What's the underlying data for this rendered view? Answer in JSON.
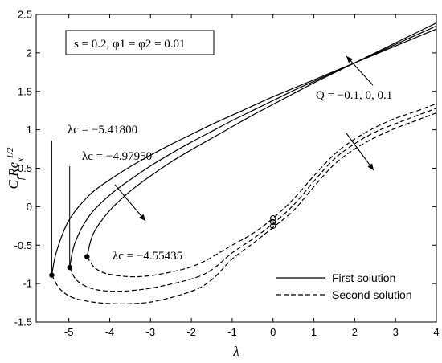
{
  "chart_data": {
    "type": "line",
    "xlabel": "λ",
    "ylabel": "C_f Re_x^{1/2}",
    "xlim": [
      -5.8,
      4
    ],
    "ylim": [
      -1.5,
      2.5
    ],
    "xticks": [
      -5,
      -4,
      -3,
      -2,
      -1,
      0,
      1,
      2,
      3,
      4
    ],
    "yticks": [
      -1.5,
      -1,
      -0.5,
      0,
      0.5,
      1,
      1.5,
      2,
      2.5
    ],
    "grid": false,
    "legend_position": "bottom-right",
    "legend": [
      {
        "label": "First solution",
        "style": "solid"
      },
      {
        "label": "Second solution",
        "style": "dashed"
      }
    ],
    "param_box": "s = 0.2, φ1 = φ2 = 0.01",
    "arrow_label": "Q = −0.1, 0, 0.1",
    "critical_labels": [
      {
        "text": "λc = −5.41800",
        "lambda": -5.418,
        "y": -0.89
      },
      {
        "text": "λc = −4.97950",
        "lambda": -4.9795,
        "y": -0.79
      },
      {
        "text": "λc = −4.55435",
        "lambda": -4.55435,
        "y": -0.65
      }
    ],
    "series": [
      {
        "style": "solid",
        "branch": "first",
        "x": [
          -5.418,
          -5.3,
          -5.0,
          -4.5,
          -4.0,
          -3.5,
          -3.0,
          -2.5,
          -2.0,
          -1.5,
          -1.0,
          -0.5,
          0.0,
          0.5,
          1.0,
          1.5,
          2.0,
          2.5,
          3.0,
          3.5,
          4.0
        ],
        "y": [
          -0.89,
          -0.58,
          -0.18,
          0.15,
          0.35,
          0.52,
          0.67,
          0.81,
          0.94,
          1.07,
          1.19,
          1.31,
          1.43,
          1.54,
          1.65,
          1.76,
          1.87,
          1.98,
          2.09,
          2.2,
          2.31
        ]
      },
      {
        "style": "solid",
        "branch": "first",
        "x": [
          -4.9795,
          -4.85,
          -4.5,
          -4.0,
          -3.5,
          -3.0,
          -2.5,
          -2.0,
          -1.5,
          -1.0,
          -0.5,
          0.0,
          0.5,
          1.0,
          1.5,
          2.0,
          2.5,
          3.0,
          3.5,
          4.0
        ],
        "y": [
          -0.79,
          -0.47,
          -0.12,
          0.15,
          0.35,
          0.53,
          0.69,
          0.84,
          0.98,
          1.12,
          1.25,
          1.38,
          1.51,
          1.63,
          1.75,
          1.87,
          1.99,
          2.11,
          2.23,
          2.35
        ]
      },
      {
        "style": "solid",
        "branch": "first",
        "x": [
          -4.55435,
          -4.4,
          -4.0,
          -3.5,
          -3.0,
          -2.5,
          -2.0,
          -1.5,
          -1.0,
          -0.5,
          0.0,
          0.5,
          1.0,
          1.5,
          2.0,
          2.5,
          3.0,
          3.5,
          4.0
        ],
        "y": [
          -0.65,
          -0.35,
          -0.05,
          0.2,
          0.4,
          0.58,
          0.74,
          0.89,
          1.04,
          1.19,
          1.33,
          1.47,
          1.61,
          1.74,
          1.87,
          2.0,
          2.13,
          2.26,
          2.39
        ]
      },
      {
        "style": "dashed",
        "branch": "second",
        "x": [
          -5.418,
          -5.2,
          -4.8,
          -4.0,
          -3.0,
          -2.0,
          -1.5,
          -1.0,
          -0.5,
          0.0,
          0.5,
          1.0,
          1.5,
          2.0,
          2.5,
          3.0,
          3.5,
          4.0
        ],
        "y": [
          -0.89,
          -1.08,
          -1.2,
          -1.26,
          -1.24,
          -1.1,
          -0.95,
          -0.68,
          -0.48,
          -0.27,
          -0.05,
          0.26,
          0.55,
          0.75,
          0.9,
          1.02,
          1.12,
          1.22
        ]
      },
      {
        "style": "dashed",
        "branch": "second",
        "x": [
          -4.9795,
          -4.8,
          -4.4,
          -3.8,
          -3.0,
          -2.0,
          -1.5,
          -1.0,
          -0.5,
          0.0,
          0.5,
          1.0,
          1.5,
          2.0,
          2.5,
          3.0,
          3.5,
          4.0
        ],
        "y": [
          -0.79,
          -0.96,
          -1.07,
          -1.1,
          -1.06,
          -0.94,
          -0.82,
          -0.6,
          -0.42,
          -0.22,
          0.02,
          0.33,
          0.62,
          0.82,
          0.97,
          1.08,
          1.18,
          1.28
        ]
      },
      {
        "style": "dashed",
        "branch": "second",
        "x": [
          -4.55435,
          -4.35,
          -4.0,
          -3.3,
          -2.5,
          -1.8,
          -1.0,
          -0.5,
          0.0,
          0.5,
          1.0,
          1.5,
          2.0,
          2.5,
          3.0,
          3.5,
          4.0
        ],
        "y": [
          -0.65,
          -0.8,
          -0.88,
          -0.91,
          -0.85,
          -0.74,
          -0.5,
          -0.35,
          -0.15,
          0.1,
          0.4,
          0.68,
          0.88,
          1.03,
          1.15,
          1.24,
          1.34
        ]
      }
    ],
    "critical_points": [
      [
        -5.418,
        -0.89
      ],
      [
        -4.9795,
        -0.79
      ],
      [
        -4.55435,
        -0.65
      ]
    ],
    "open_markers": [
      [
        0,
        -0.15
      ],
      [
        0,
        -0.2
      ],
      [
        0,
        -0.25
      ]
    ]
  }
}
